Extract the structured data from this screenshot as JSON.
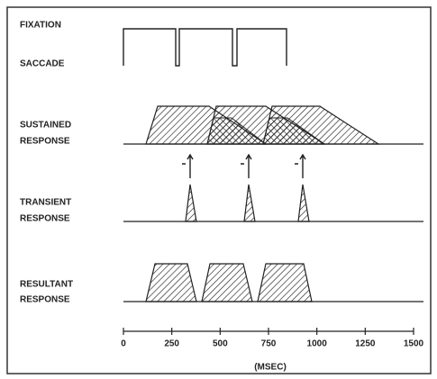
{
  "labels": {
    "fixation": "FIXATION",
    "saccade": "SACCADE",
    "sustained": [
      "SUSTAINED",
      "RESPONSE"
    ],
    "transient": [
      "TRANSIENT",
      "RESPONSE"
    ],
    "resultant": [
      "RESULTANT",
      "RESPONSE"
    ]
  },
  "axis": {
    "label": "(MSEC)",
    "ticks": [
      0,
      250,
      500,
      750,
      1000,
      1250,
      1500
    ]
  }
}
